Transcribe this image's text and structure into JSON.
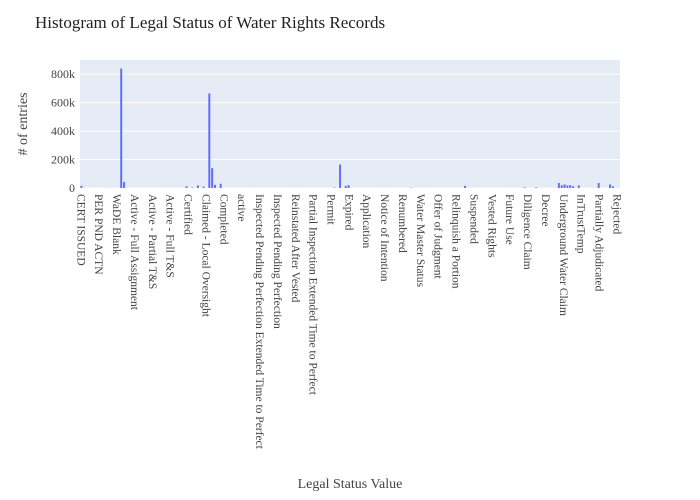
{
  "chart_data": {
    "type": "bar",
    "title": "Histogram of Legal Status of Water Rights Records",
    "xlabel": "Legal Status Value",
    "ylabel": "# of entries",
    "ylim": [
      0,
      900000
    ],
    "yticks": [
      0,
      200000,
      400000,
      600000,
      800000
    ],
    "ytick_labels": [
      "0",
      "200k",
      "400k",
      "600k",
      "800k"
    ],
    "grid": true,
    "bar_color": "#636efa",
    "plot_bg": "#e5ecf6",
    "xtick_labels": [
      "CERT ISSUED",
      "PER PND ACTN",
      "WaDE Blank",
      "Active - Full Assignment",
      "Active - Partial T&S",
      "Active - Full T&S",
      "Certified",
      "Claimed - Local Oversight",
      "Completed",
      "active",
      "Inspected Pending Perfection Extended Time to Perfect",
      "Inspected Pending Perfection",
      "Reinstated After Vested",
      "Partial Inspection Extended Time to Perfect",
      "Permit",
      "Expired",
      "Application",
      "Notice of Intention",
      "Renumbered",
      "Water Master Status",
      "Offer of Judgment",
      "Relinquish a Portion",
      "Suspended",
      "Vested Rights",
      "Future Use",
      "Diligence Claim",
      "Decree",
      "Underground Water Claim",
      "InTrustTemp",
      "Partially Adjudicated",
      "Rejected"
    ],
    "values": [
      15000,
      1500,
      500,
      1000,
      1000,
      1000,
      1000,
      1000,
      1000,
      1500,
      1000,
      1000,
      1000,
      1000,
      840000,
      42000,
      1500,
      1000,
      1000,
      1000,
      1000,
      1000,
      1000,
      1000,
      1000,
      1000,
      1000,
      1000,
      1000,
      1000,
      1000,
      1000,
      1000,
      1000,
      1000,
      1000,
      1000,
      12000,
      1000,
      4000,
      1000,
      18000,
      1000,
      10000,
      1000,
      665000,
      140000,
      22000,
      1000,
      30000,
      1000,
      1000,
      1000,
      1000,
      1000,
      1000,
      1000,
      1000,
      1000,
      1000,
      1000,
      1000,
      1000,
      1000,
      1000,
      1000,
      1000,
      1000,
      1000,
      1000,
      1000,
      1000,
      1000,
      1000,
      1000,
      1000,
      1000,
      1000,
      1000,
      1000,
      1000,
      1000,
      1000,
      1000,
      1000,
      1000,
      1000,
      1000,
      1000,
      4000,
      1000,
      165000,
      1000,
      15000,
      20000,
      1000,
      1000,
      1000,
      1000,
      1000,
      1000,
      1000,
      1000,
      1000,
      1000,
      1000,
      1000,
      1000,
      1000,
      1000,
      1000,
      1000,
      1000,
      1000,
      1000,
      1000,
      3000,
      1000,
      1000,
      1000,
      1000,
      1000,
      1000,
      1000,
      1000,
      1000,
      1000,
      1000,
      1000,
      1000,
      1000,
      1000,
      1000,
      1000,
      1000,
      15000,
      1000,
      1000,
      1000,
      1000,
      1000,
      1000,
      1000,
      1000,
      1000,
      1000,
      1000,
      1000,
      1000,
      1000,
      1000,
      1000,
      1000,
      1000,
      1000,
      1000,
      5000,
      1000,
      1000,
      1000,
      5000,
      1000,
      1000,
      1000,
      1000,
      1000,
      1000,
      1000,
      35000,
      20000,
      25000,
      18000,
      20000,
      12000,
      1000,
      18000,
      1000,
      1000,
      1000,
      1000,
      1000,
      1000,
      35000,
      1000,
      1000,
      1000,
      25000,
      12000,
      1000,
      1000
    ]
  }
}
